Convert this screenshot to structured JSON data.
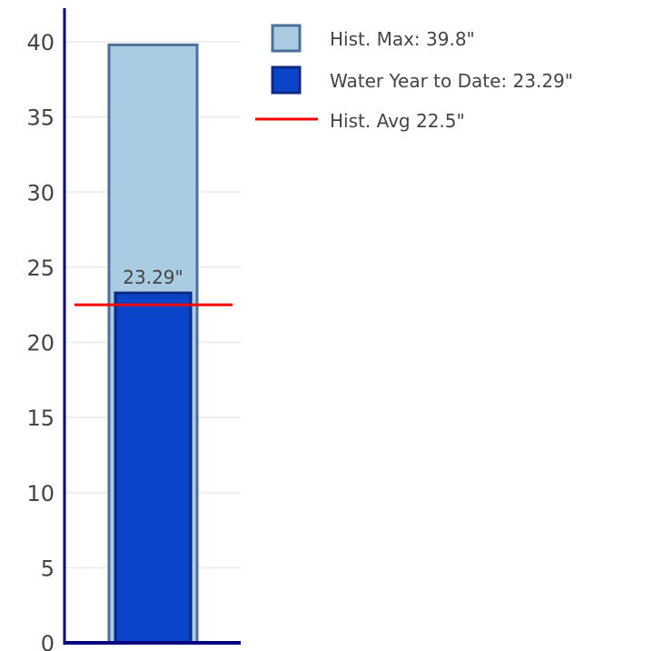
{
  "chart_data": {
    "type": "bar",
    "ylim": [
      0,
      42
    ],
    "yticks": [
      0,
      5,
      10,
      15,
      20,
      25,
      30,
      35,
      40
    ],
    "grid": true,
    "legend_position": "top-right",
    "series": [
      {
        "name": "Hist. Max: 39.8\"",
        "value": 39.8,
        "color": "#aacce3",
        "border_color": "#4c7099",
        "legend_text": "Hist. Max: 39.8\""
      },
      {
        "name": "Water Year to Date: 23.29\"",
        "value": 23.29,
        "color": "#0a44c8",
        "border_color": "#0d2a80",
        "legend_text": "Water Year to Date: 23.29\"",
        "data_label": "23.29\""
      }
    ],
    "reference_line": {
      "name": "Hist. Avg 22.5\"",
      "value": 22.5,
      "color": "#ff0000",
      "legend_text": "Hist. Avg 22.5\""
    },
    "axis_color": "#000080",
    "grid_color": "#eeeeee"
  }
}
